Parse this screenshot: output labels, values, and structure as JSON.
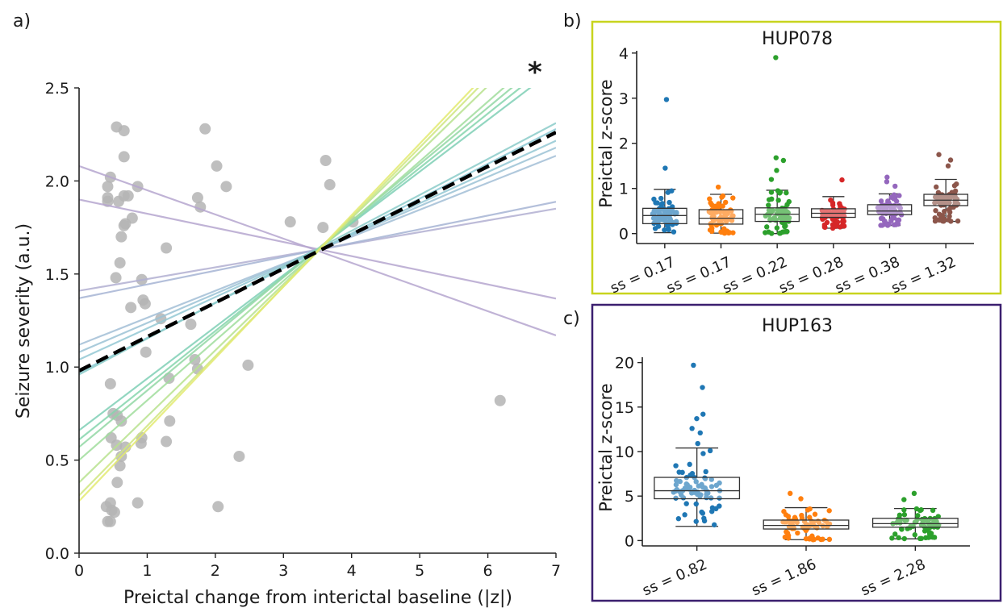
{
  "figure": {
    "panel_labels": [
      "a)",
      "b)",
      "c)"
    ],
    "significance_marker": "*"
  },
  "chart_data": [
    {
      "panel": "a)",
      "type": "scatter",
      "xlabel": "Preictal change from interictal baseline (|z|)",
      "ylabel": "Seizure severity (a.u.)",
      "xlim": [
        0,
        7
      ],
      "ylim": [
        0,
        2.5
      ],
      "xticks": [
        0,
        1,
        2,
        3,
        4,
        5,
        6,
        7
      ],
      "yticks": [
        0.0,
        0.5,
        1.0,
        1.5,
        2.0,
        2.5
      ],
      "ytick_labels": [
        "0.0",
        "0.5",
        "1.0",
        "1.5",
        "2.0",
        "2.5"
      ],
      "point_color": "#b4b4b4",
      "points": [
        [
          0.55,
          2.29
        ],
        [
          0.66,
          2.27
        ],
        [
          0.46,
          2.02
        ],
        [
          0.66,
          2.13
        ],
        [
          0.42,
          1.97
        ],
        [
          0.42,
          1.91
        ],
        [
          0.58,
          1.89
        ],
        [
          0.66,
          1.92
        ],
        [
          0.72,
          1.92
        ],
        [
          0.86,
          1.97
        ],
        [
          0.42,
          1.89
        ],
        [
          0.78,
          1.8
        ],
        [
          0.68,
          1.77
        ],
        [
          0.66,
          1.76
        ],
        [
          0.62,
          1.7
        ],
        [
          0.6,
          1.56
        ],
        [
          0.54,
          1.48
        ],
        [
          0.92,
          1.47
        ],
        [
          0.76,
          1.32
        ],
        [
          0.94,
          1.36
        ],
        [
          0.97,
          1.34
        ],
        [
          0.98,
          1.08
        ],
        [
          1.2,
          1.26
        ],
        [
          1.28,
          1.64
        ],
        [
          1.64,
          1.23
        ],
        [
          1.7,
          1.04
        ],
        [
          1.74,
          0.99
        ],
        [
          1.32,
          0.94
        ],
        [
          1.33,
          0.71
        ],
        [
          1.28,
          0.6
        ],
        [
          0.46,
          0.91
        ],
        [
          0.5,
          0.75
        ],
        [
          0.56,
          0.74
        ],
        [
          0.62,
          0.71
        ],
        [
          0.47,
          0.62
        ],
        [
          0.55,
          0.58
        ],
        [
          0.68,
          0.57
        ],
        [
          0.92,
          0.62
        ],
        [
          0.91,
          0.59
        ],
        [
          0.62,
          0.52
        ],
        [
          0.6,
          0.47
        ],
        [
          0.56,
          0.38
        ],
        [
          0.86,
          0.27
        ],
        [
          0.4,
          0.25
        ],
        [
          0.46,
          0.27
        ],
        [
          0.48,
          0.23
        ],
        [
          0.52,
          0.22
        ],
        [
          0.42,
          0.17
        ],
        [
          0.46,
          0.17
        ],
        [
          1.85,
          2.28
        ],
        [
          2.02,
          2.08
        ],
        [
          1.74,
          1.91
        ],
        [
          1.78,
          1.86
        ],
        [
          2.16,
          1.97
        ],
        [
          3.1,
          1.78
        ],
        [
          3.62,
          2.11
        ],
        [
          3.58,
          1.75
        ],
        [
          3.68,
          1.98
        ],
        [
          4.02,
          1.78
        ],
        [
          2.48,
          1.01
        ],
        [
          2.35,
          0.52
        ],
        [
          2.04,
          0.25
        ],
        [
          6.18,
          0.82
        ]
      ],
      "fit_line": {
        "label": "",
        "intercept": 0.98,
        "slope": 0.183,
        "color": "#000000",
        "dash": true
      },
      "bootstrap_lines": [
        {
          "intercept": 2.08,
          "slope": -0.13,
          "color": "#b6a6cf"
        },
        {
          "intercept": 1.9,
          "slope": -0.076,
          "color": "#b6a6cf"
        },
        {
          "intercept": 1.41,
          "slope": 0.063,
          "color": "#b2b0d2"
        },
        {
          "intercept": 1.37,
          "slope": 0.074,
          "color": "#a6b4d4"
        },
        {
          "intercept": 1.12,
          "slope": 0.145,
          "color": "#a3bfd6"
        },
        {
          "intercept": 1.08,
          "slope": 0.157,
          "color": "#9cc3d5"
        },
        {
          "intercept": 1.04,
          "slope": 0.168,
          "color": "#94c8d4"
        },
        {
          "intercept": 0.97,
          "slope": 0.187,
          "color": "#8cc9d5"
        },
        {
          "intercept": 0.96,
          "slope": 0.193,
          "color": "#8bccc9"
        },
        {
          "intercept": 0.66,
          "slope": 0.278,
          "color": "#7fd0b6"
        },
        {
          "intercept": 0.61,
          "slope": 0.292,
          "color": "#86d5ad"
        },
        {
          "intercept": 0.57,
          "slope": 0.304,
          "color": "#92d8a5"
        },
        {
          "intercept": 0.5,
          "slope": 0.321,
          "color": "#a1dd9d"
        },
        {
          "intercept": 0.38,
          "slope": 0.355,
          "color": "#b8e28f"
        },
        {
          "intercept": 0.31,
          "slope": 0.374,
          "color": "#d0e77f"
        },
        {
          "intercept": 0.28,
          "slope": 0.384,
          "color": "#e3ea70"
        }
      ]
    },
    {
      "panel": "b)",
      "type": "box",
      "title": "HUP078",
      "frame_color": "#c8d41e",
      "ylabel": "Preictal z-score",
      "ylim": [
        -0.22,
        4.05
      ],
      "yticks": [
        0,
        1,
        2,
        3,
        4
      ],
      "ytick_labels": [
        "0",
        "1",
        "2",
        "3",
        "4"
      ],
      "categories": [
        "ss = 0.17",
        "ss = 0.17",
        "ss = 0.22",
        "ss = 0.28",
        "ss = 0.38",
        "ss = 1.32"
      ],
      "boxes": [
        {
          "color": "#1f77b4",
          "q1": 0.22,
          "median": 0.4,
          "q3": 0.56,
          "whisker_low": 0.02,
          "whisker_high": 0.98,
          "outliers": [
            1.45,
            2.97
          ]
        },
        {
          "color": "#ff7f0e",
          "q1": 0.21,
          "median": 0.34,
          "q3": 0.53,
          "whisker_low": 0.01,
          "whisker_high": 0.87,
          "outliers": [
            1.03
          ]
        },
        {
          "color": "#2ca02c",
          "q1": 0.27,
          "median": 0.43,
          "q3": 0.57,
          "whisker_low": 0.0,
          "whisker_high": 0.96,
          "outliers": [
            1.2,
            1.4,
            1.62,
            1.68,
            3.9
          ]
        },
        {
          "color": "#d62728",
          "q1": 0.36,
          "median": 0.45,
          "q3": 0.55,
          "whisker_low": 0.12,
          "whisker_high": 0.82,
          "outliers": [
            1.19
          ]
        },
        {
          "color": "#9467bd",
          "q1": 0.42,
          "median": 0.5,
          "q3": 0.64,
          "whisker_low": 0.18,
          "whisker_high": 0.88,
          "outliers": [
            1.05,
            1.15,
            1.25
          ]
        },
        {
          "color": "#8c564b",
          "q1": 0.62,
          "median": 0.74,
          "q3": 0.87,
          "whisker_low": 0.27,
          "whisker_high": 1.2,
          "outliers": [
            1.5,
            1.63,
            1.75
          ]
        }
      ]
    },
    {
      "panel": "c)",
      "type": "box",
      "title": "HUP163",
      "frame_color": "#3b1f6f",
      "ylabel": "Preictal z-score",
      "ylim": [
        -0.6,
        20.6
      ],
      "yticks": [
        0,
        5,
        10,
        15,
        20
      ],
      "ytick_labels": [
        "0",
        "5",
        "10",
        "15",
        "20"
      ],
      "categories": [
        "ss = 0.82",
        "ss = 1.86",
        "ss = 2.28"
      ],
      "boxes": [
        {
          "color": "#1f77b4",
          "q1": 4.7,
          "median": 5.6,
          "q3": 7.1,
          "whisker_low": 1.6,
          "whisker_high": 10.4,
          "outliers": [
            10.9,
            12.1,
            12.6,
            13.7,
            14.2,
            17.2,
            19.7
          ]
        },
        {
          "color": "#ff7f0e",
          "q1": 1.3,
          "median": 1.7,
          "q3": 2.3,
          "whisker_low": 0.1,
          "whisker_high": 3.7,
          "outliers": [
            4.7,
            5.3
          ]
        },
        {
          "color": "#2ca02c",
          "q1": 1.5,
          "median": 1.9,
          "q3": 2.5,
          "whisker_low": 0.2,
          "whisker_high": 3.6,
          "outliers": [
            4.6,
            5.3
          ]
        }
      ]
    }
  ]
}
